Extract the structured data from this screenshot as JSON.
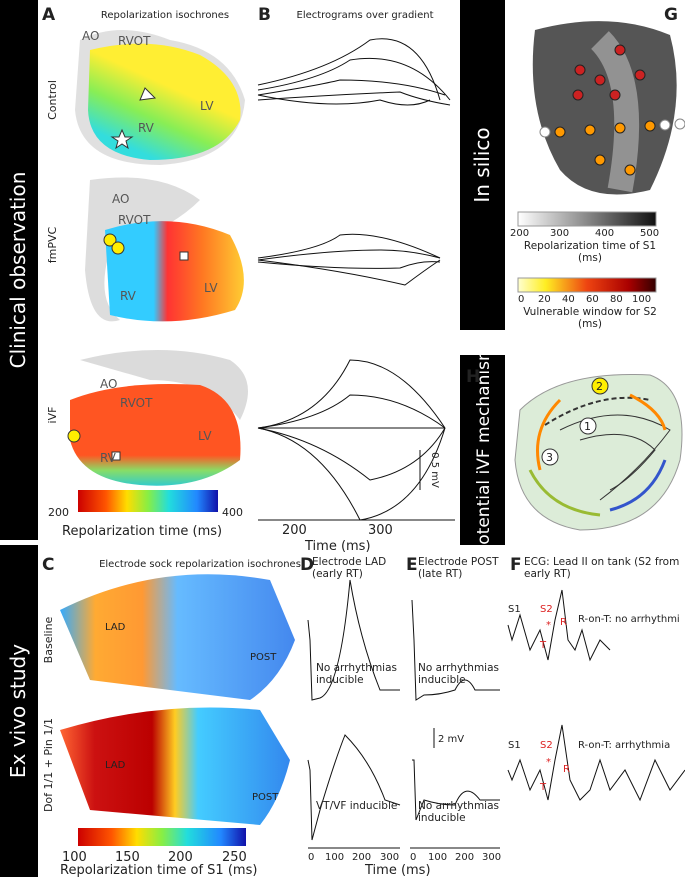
{
  "side_labels": {
    "clinical": "Clinical observation",
    "ex_vivo": "Ex vivo study",
    "in_silico": "In silico",
    "mechanism": "potential iVF mechanism"
  },
  "panel_a": {
    "letter": "A",
    "title": "Repolarization isochrones",
    "rows": [
      "Control",
      "fmPVC",
      "iVF"
    ],
    "hearts": [
      [
        "AO",
        "RVOT",
        "LV",
        "RV"
      ],
      [
        "AO",
        "RVOT",
        "LV",
        "RV"
      ],
      [
        "AO",
        "RVOT",
        "LV",
        "RV"
      ]
    ],
    "colorbar": {
      "ticks": [
        200,
        400
      ],
      "label": "Repolarization time (ms)"
    }
  },
  "panel_b": {
    "letter": "B",
    "title": "Electrograms over gradient",
    "xticks": [
      200,
      300
    ],
    "xlabel": "Time (ms)",
    "scale": "0.5 mV"
  },
  "panel_g": {
    "letter": "G",
    "colorbar_rt": {
      "ticks": [
        200,
        300,
        400,
        500
      ],
      "label": "Repolarization time of S1 (ms)"
    },
    "colorbar_vw": {
      "ticks": [
        0,
        20,
        40,
        60,
        80,
        100
      ],
      "label": "Vulnerable window for S2 (ms)"
    }
  },
  "panel_h": {
    "letter": "H",
    "steps": [
      "1",
      "2",
      "3"
    ]
  },
  "panel_c": {
    "letter": "C",
    "title": "Electrode sock repolarization isochrones",
    "rows": [
      "Baseline",
      "Dof 1/1 + Pin 1/1"
    ],
    "maps": [
      [
        "LAD",
        "POST"
      ],
      [
        "LAD",
        "POST"
      ]
    ],
    "colorbar": {
      "ticks": [
        100,
        150,
        200,
        250
      ],
      "label": "Repolarization time of S1 (ms)"
    }
  },
  "panel_d": {
    "letter": "D",
    "title": "Electrode LAD (early RT)",
    "notes": [
      "No arrhythmias inducible",
      "VT/VF inducible"
    ],
    "xticks": [
      0,
      100,
      200,
      300
    ]
  },
  "panel_e": {
    "letter": "E",
    "title": "Electrode POST (late RT)",
    "notes": [
      "No arrhythmias inducible",
      "No arrhythmias inducible"
    ],
    "xticks": [
      0,
      100,
      200,
      300
    ],
    "scale": "2 mV"
  },
  "time_label": "Time (ms)",
  "panel_f": {
    "letter": "F",
    "title": "ECG: Lead II on tank (S2 from early RT)",
    "traces": [
      {
        "s1": "S1",
        "s2": "S2",
        "star": "*",
        "t": "T",
        "r": "R",
        "note": "R-on-T: no arrhythmi"
      },
      {
        "s1": "S1",
        "s2": "S2",
        "star": "*",
        "t": "T",
        "r": "R",
        "note": "R-on-T: arrhythmia"
      }
    ]
  }
}
